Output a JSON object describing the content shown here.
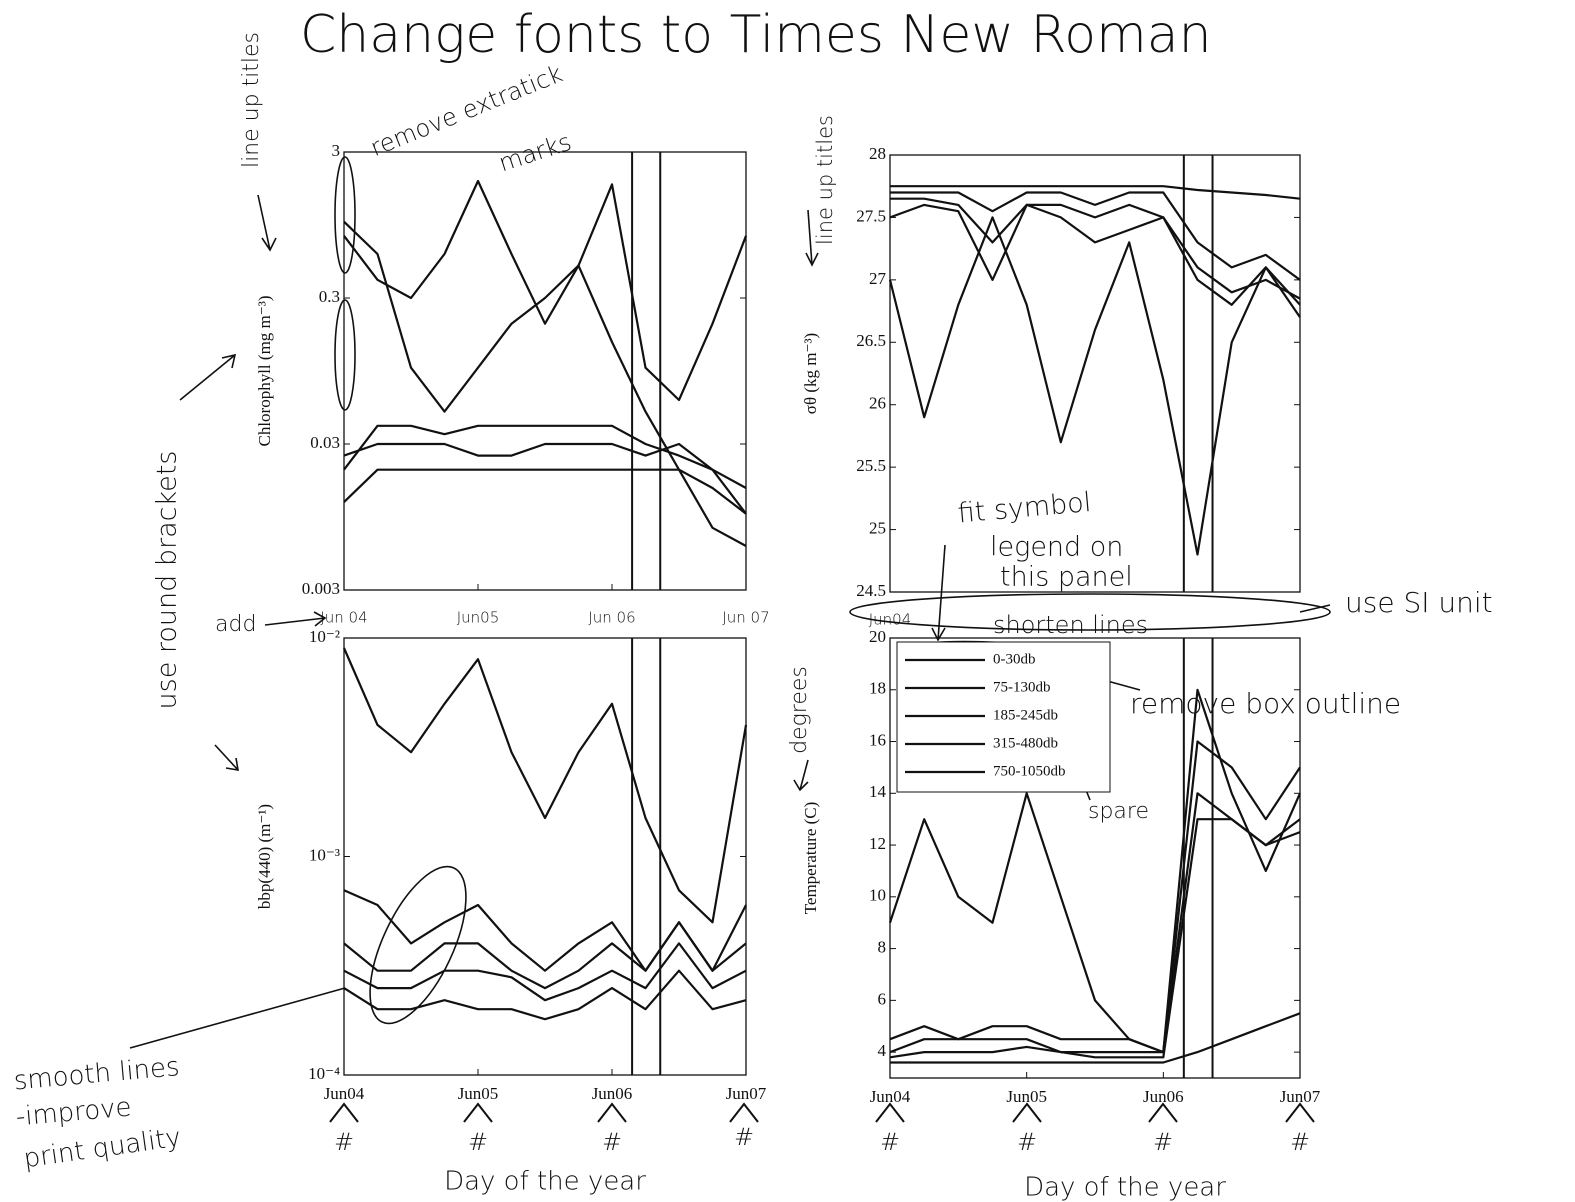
{
  "chart_data": [
    {
      "type": "line",
      "ylabel": "Chlorophyll (mg m⁻³)",
      "yscale": "log",
      "color": "#111",
      "x": [
        0,
        0.25,
        0.5,
        0.75,
        1,
        1.25,
        1.5,
        1.75,
        2,
        2.25,
        2.5,
        2.75,
        3
      ],
      "xlim": [
        0,
        3
      ],
      "xticks": [
        {
          "value": 0,
          "label": "Jun 04"
        },
        {
          "value": 1,
          "label": "Jun05"
        },
        {
          "value": 2,
          "label": "Jun 06"
        },
        {
          "value": 3,
          "label": "Jun 07"
        }
      ],
      "ylim": [
        0.003,
        3
      ],
      "yticks": [
        0.003,
        0.03,
        0.3,
        3
      ],
      "vlines": [
        2.15,
        2.36
      ],
      "series": [
        {
          "values": [
            0.8,
            0.4,
            0.3,
            0.6,
            1.9,
            0.6,
            0.2,
            0.5,
            1.8,
            0.1,
            0.06,
            0.2,
            0.8
          ]
        },
        {
          "values": [
            1.0,
            0.6,
            0.1,
            0.05,
            0.1,
            0.2,
            0.3,
            0.5,
            0.15,
            0.05,
            0.02,
            0.015,
            0.01
          ]
        },
        {
          "values": [
            0.02,
            0.04,
            0.04,
            0.035,
            0.04,
            0.04,
            0.04,
            0.04,
            0.04,
            0.03,
            0.025,
            0.02,
            0.01
          ]
        },
        {
          "values": [
            0.025,
            0.03,
            0.03,
            0.03,
            0.025,
            0.025,
            0.03,
            0.03,
            0.03,
            0.025,
            0.03,
            0.02,
            0.015
          ]
        },
        {
          "values": [
            0.012,
            0.02,
            0.02,
            0.02,
            0.02,
            0.02,
            0.02,
            0.02,
            0.02,
            0.02,
            0.02,
            0.008,
            0.006
          ]
        }
      ]
    },
    {
      "type": "line",
      "ylabel": "σθ (kg m⁻³)",
      "color": "#111",
      "x": [
        0,
        0.25,
        0.5,
        0.75,
        1,
        1.25,
        1.5,
        1.75,
        2,
        2.25,
        2.5,
        2.75,
        3
      ],
      "xlim": [
        0,
        3
      ],
      "xticks": [
        {
          "value": 0,
          "label": "Jun04"
        }
      ],
      "ylim": [
        24.5,
        28
      ],
      "yticks": [
        24.5,
        25,
        25.5,
        26,
        26.5,
        27,
        27.5,
        28
      ],
      "vlines": [
        2.15,
        2.36
      ],
      "series": [
        {
          "values": [
            27.75,
            27.75,
            27.75,
            27.75,
            27.75,
            27.75,
            27.75,
            27.75,
            27.75,
            27.72,
            27.7,
            27.68,
            27.65
          ]
        },
        {
          "values": [
            27.7,
            27.7,
            27.7,
            27.55,
            27.7,
            27.7,
            27.6,
            27.7,
            27.7,
            27.3,
            27.1,
            27.2,
            27.0
          ]
        },
        {
          "values": [
            27.65,
            27.65,
            27.6,
            27.3,
            27.6,
            27.6,
            27.5,
            27.6,
            27.5,
            27.1,
            26.9,
            27.0,
            26.85
          ]
        },
        {
          "values": [
            27.5,
            27.6,
            27.55,
            27.0,
            27.6,
            27.5,
            27.3,
            27.4,
            27.5,
            27.0,
            26.8,
            27.1,
            26.8
          ]
        },
        {
          "values": [
            27.0,
            25.9,
            26.8,
            27.5,
            26.8,
            25.7,
            26.6,
            27.3,
            26.2,
            24.8,
            26.5,
            27.1,
            26.7
          ]
        }
      ]
    },
    {
      "type": "line",
      "ylabel": "bbp(440) (m⁻¹)",
      "yscale": "log",
      "color": "#111",
      "x": [
        0,
        0.25,
        0.5,
        0.75,
        1,
        1.25,
        1.5,
        1.75,
        2,
        2.25,
        2.5,
        2.75,
        3
      ],
      "xlim": [
        0,
        3
      ],
      "xticks": [
        {
          "value": 0,
          "label": "Jun04"
        },
        {
          "value": 1,
          "label": "Jun05"
        },
        {
          "value": 2,
          "label": "Jun06"
        },
        {
          "value": 3,
          "label": "Jun07"
        }
      ],
      "ylim": [
        0.0001,
        0.01
      ],
      "yticks": [
        {
          "value": 0.0001,
          "label": "10⁻⁴"
        },
        {
          "value": 0.001,
          "label": "10⁻³"
        },
        {
          "value": 0.01,
          "label": "10⁻²"
        }
      ],
      "vlines": [
        2.15,
        2.36
      ],
      "series": [
        {
          "values": [
            0.009,
            0.004,
            0.003,
            0.005,
            0.008,
            0.003,
            0.0015,
            0.003,
            0.005,
            0.0015,
            0.0007,
            0.0005,
            0.004
          ]
        },
        {
          "values": [
            0.0007,
            0.0006,
            0.0004,
            0.0005,
            0.0006,
            0.0004,
            0.0003,
            0.0004,
            0.0005,
            0.0003,
            0.0005,
            0.0003,
            0.0006
          ]
        },
        {
          "values": [
            0.0004,
            0.0003,
            0.0003,
            0.0004,
            0.0004,
            0.0003,
            0.00025,
            0.0003,
            0.0004,
            0.0003,
            0.0005,
            0.0003,
            0.0004
          ]
        },
        {
          "values": [
            0.0003,
            0.00025,
            0.00025,
            0.0003,
            0.0003,
            0.00028,
            0.00022,
            0.00025,
            0.0003,
            0.00025,
            0.0004,
            0.00025,
            0.0003
          ]
        },
        {
          "values": [
            0.00025,
            0.0002,
            0.0002,
            0.00022,
            0.0002,
            0.0002,
            0.00018,
            0.0002,
            0.00025,
            0.0002,
            0.0003,
            0.0002,
            0.00022
          ]
        }
      ]
    },
    {
      "type": "line",
      "ylabel": "Temperature (C)",
      "color": "#111",
      "legend": "upper left",
      "x": [
        0,
        0.25,
        0.5,
        0.75,
        1,
        1.25,
        1.5,
        1.75,
        2,
        2.25,
        2.5,
        2.75,
        3
      ],
      "xlim": [
        0,
        3
      ],
      "xticks": [
        {
          "value": 0,
          "label": "Jun04"
        },
        {
          "value": 1,
          "label": "Jun05"
        },
        {
          "value": 2,
          "label": "Jun06"
        },
        {
          "value": 3,
          "label": "Jun07"
        }
      ],
      "ylim": [
        3,
        20
      ],
      "yticks": [
        4,
        6,
        8,
        10,
        12,
        14,
        16,
        18,
        20
      ],
      "vlines": [
        2.15,
        2.36
      ],
      "series": [
        {
          "name": "0-30db",
          "values": [
            9,
            13,
            10,
            9,
            14,
            10,
            6,
            4.5,
            4,
            18,
            14,
            11,
            14
          ]
        },
        {
          "name": "75-130db",
          "values": [
            4.5,
            5,
            4.5,
            5,
            5,
            4.5,
            4.5,
            4.5,
            4,
            16,
            15,
            13,
            15
          ]
        },
        {
          "name": "185-245db",
          "values": [
            4,
            4.5,
            4.5,
            4.5,
            4.5,
            4,
            4,
            4,
            4,
            14,
            13,
            12,
            13
          ]
        },
        {
          "name": "315-480db",
          "values": [
            3.8,
            4,
            4,
            4,
            4.2,
            4,
            3.8,
            3.8,
            3.8,
            13,
            13,
            12,
            12.5
          ]
        },
        {
          "name": "750-1050db",
          "values": [
            3.6,
            3.6,
            3.6,
            3.6,
            3.6,
            3.6,
            3.6,
            3.6,
            3.6,
            4,
            4.5,
            5,
            5.5
          ]
        }
      ]
    }
  ],
  "annotations": [
    "Change fonts to Times New Roman",
    "line up titles",
    "remove extratick",
    "marks",
    "use round brackets",
    "add",
    "line up titles",
    "fit symbol",
    "legend on",
    "this panel",
    "use SI unit",
    "shorten lines",
    "remove box outline",
    "spare",
    "degrees",
    "smooth lines",
    "-improve",
    "print quality",
    "Day of the year",
    "Day of the year",
    "#",
    "#",
    "#",
    "#",
    "#",
    "#",
    "#",
    "#"
  ]
}
